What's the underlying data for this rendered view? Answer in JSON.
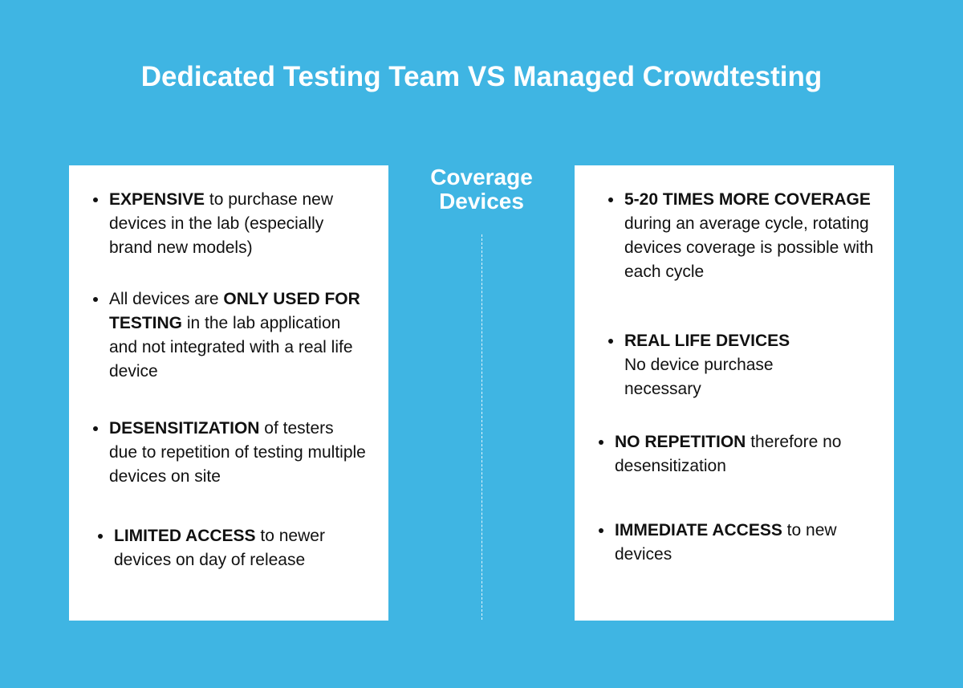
{
  "title": "Dedicated Testing Team VS Managed Crowdtesting",
  "center": {
    "line1": "Coverage",
    "line2": "Devices"
  },
  "left": [
    {
      "bold": "EXPENSIVE",
      "rest": " to purchase new devices in the lab (especially brand new models)"
    },
    {
      "pre": "All devices are ",
      "bold": "ONLY USED FOR TESTING",
      "rest": " in the lab application and not integrated with a real life device"
    },
    {
      "bold": "DESENSITIZATION",
      "rest": " of testers due to repetition of testing multiple devices on site"
    },
    {
      "bold": "LIMITED ACCESS",
      "rest": " to newer devices on day of release"
    }
  ],
  "right": [
    {
      "bold": "5-20 TIMES MORE COVERAGE",
      "rest": " during an average cycle, rotating devices coverage is possible with each cycle"
    },
    {
      "bold": "REAL LIFE DEVICES",
      "rest": "No device purchase necessary"
    },
    {
      "bold": "NO REPETITION",
      "rest": " therefore no desensitization"
    },
    {
      "bold": "IMMEDIATE ACCESS",
      "rest": " to new devices"
    }
  ]
}
